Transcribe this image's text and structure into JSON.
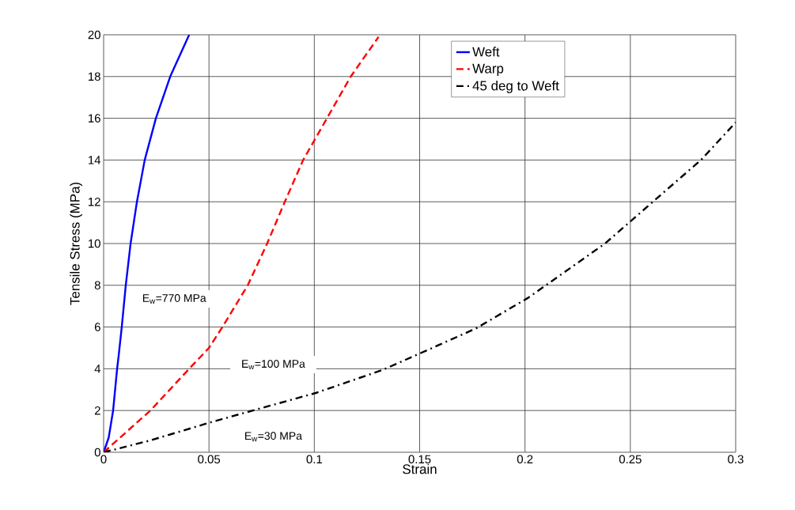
{
  "chart_data": {
    "type": "line",
    "xlabel": "Strain",
    "ylabel": "Tensile Stress (MPa)",
    "xlim": [
      0,
      0.3
    ],
    "ylim": [
      0,
      20
    ],
    "xticks": [
      0,
      0.05,
      0.1,
      0.15,
      0.2,
      0.25,
      0.3
    ],
    "yticks": [
      0,
      2,
      4,
      6,
      8,
      10,
      12,
      14,
      16,
      18,
      20
    ],
    "grid": true,
    "legend": "top right",
    "series": [
      {
        "name": "Weft",
        "color": "#0000ff",
        "line_style": "solid",
        "x": [
          0,
          0.0024,
          0.0045,
          0.0064,
          0.0071,
          0.0086,
          0.0105,
          0.0128,
          0.0158,
          0.0195,
          0.0248,
          0.0316,
          0.0406
        ],
        "values": [
          0,
          0.7,
          2.0,
          4.0,
          4.6,
          6.0,
          8.0,
          10.0,
          12.0,
          14.0,
          16.0,
          18.0,
          20.0
        ]
      },
      {
        "name": "Warp",
        "color": "#ff0000",
        "line_style": "dashed",
        "x": [
          0,
          0.0222,
          0.0406,
          0.05,
          0.0564,
          0.0684,
          0.0776,
          0.086,
          0.0947,
          0.106,
          0.1173,
          0.1305
        ],
        "values": [
          0,
          2.0,
          4.0,
          5.0,
          6.0,
          8.0,
          10.0,
          12.0,
          14.0,
          16.0,
          18.0,
          19.9
        ]
      },
      {
        "name": "45 deg to Weft",
        "color": "#000000",
        "line_style": "dashdot",
        "x": [
          0,
          0.0215,
          0.051,
          0.069,
          0.1007,
          0.1323,
          0.15,
          0.1767,
          0.2015,
          0.238,
          0.2607,
          0.2835,
          0.3
        ],
        "values": [
          0,
          0.55,
          1.44,
          1.95,
          2.84,
          3.94,
          4.73,
          5.93,
          7.4,
          10.0,
          12.0,
          14.0,
          15.8
        ]
      }
    ],
    "annotations": [
      "E$_{w}$=770 MPa",
      "E$_{w}$=100 MPa",
      "E$_{w}$=30 MPa"
    ]
  }
}
